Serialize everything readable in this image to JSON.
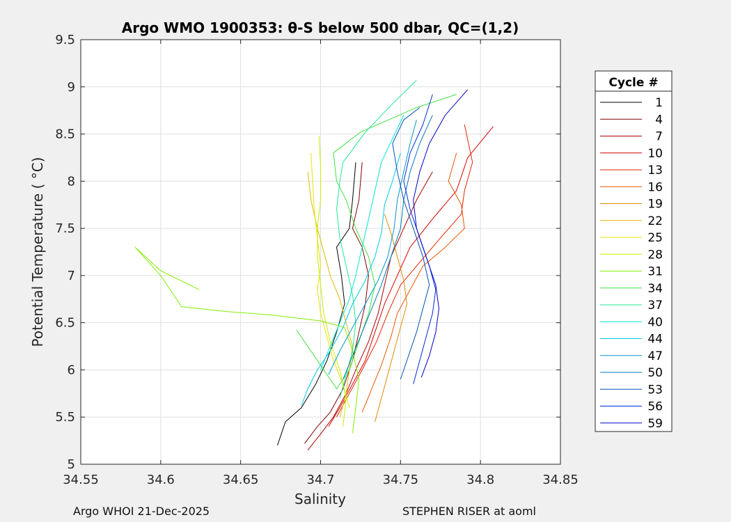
{
  "chart_data": {
    "type": "line",
    "title": "Argo WMO 1900353: θ-S below 500 dbar,  QC=(1,2)",
    "xlabel": "Salinity",
    "ylabel": "Potential Temperature ( °C)",
    "xlim": [
      34.55,
      34.85
    ],
    "ylim": [
      5,
      9.5
    ],
    "xticks": [
      "34.55",
      "34.6",
      "34.65",
      "34.7",
      "34.75",
      "34.8",
      "34.85"
    ],
    "yticks": [
      "5",
      "5.5",
      "6",
      "6.5",
      "7",
      "7.5",
      "8",
      "8.5",
      "9",
      "9.5"
    ],
    "grid": true,
    "legend": {
      "title": "Cycle #",
      "placement": "outside-right",
      "entries": [
        {
          "name": "1",
          "color": "#000000"
        },
        {
          "name": "4",
          "color": "#800000"
        },
        {
          "name": "7",
          "color": "#aa0000"
        },
        {
          "name": "10",
          "color": "#d40000"
        },
        {
          "name": "13",
          "color": "#e32400"
        },
        {
          "name": "16",
          "color": "#e85500"
        },
        {
          "name": "19",
          "color": "#e08a00"
        },
        {
          "name": "22",
          "color": "#e0b800"
        },
        {
          "name": "25",
          "color": "#e6e600"
        },
        {
          "name": "28",
          "color": "#c8f000"
        },
        {
          "name": "31",
          "color": "#80f000"
        },
        {
          "name": "34",
          "color": "#40e040"
        },
        {
          "name": "37",
          "color": "#20e890"
        },
        {
          "name": "40",
          "color": "#00e6d2"
        },
        {
          "name": "44",
          "color": "#00c8e6"
        },
        {
          "name": "47",
          "color": "#0096c8"
        },
        {
          "name": "50",
          "color": "#0078b4"
        },
        {
          "name": "53",
          "color": "#0050b4"
        },
        {
          "name": "56",
          "color": "#0028dc"
        },
        {
          "name": "59",
          "color": "#0000c8"
        }
      ]
    },
    "series": [
      {
        "name": "1",
        "color": "#000000",
        "points": [
          [
            34.673,
            5.2
          ],
          [
            34.678,
            5.45
          ],
          [
            34.688,
            5.6
          ],
          [
            34.697,
            5.85
          ],
          [
            34.704,
            6.1
          ],
          [
            34.71,
            6.4
          ],
          [
            34.715,
            6.7
          ],
          [
            34.713,
            7.0
          ],
          [
            34.71,
            7.3
          ],
          [
            34.718,
            7.5
          ],
          [
            34.72,
            7.8
          ],
          [
            34.722,
            8.2
          ]
        ]
      },
      {
        "name": "4",
        "color": "#800000",
        "points": [
          [
            34.69,
            5.22
          ],
          [
            34.698,
            5.4
          ],
          [
            34.706,
            5.55
          ],
          [
            34.714,
            5.8
          ],
          [
            34.72,
            6.1
          ],
          [
            34.724,
            6.4
          ],
          [
            34.728,
            6.7
          ],
          [
            34.73,
            7.0
          ],
          [
            34.726,
            7.3
          ],
          [
            34.72,
            7.5
          ],
          [
            34.724,
            7.8
          ],
          [
            34.726,
            8.2
          ]
        ]
      },
      {
        "name": "7",
        "color": "#aa0000",
        "points": [
          [
            34.692,
            5.15
          ],
          [
            34.7,
            5.32
          ],
          [
            34.708,
            5.5
          ],
          [
            34.716,
            5.75
          ],
          [
            34.722,
            6.0
          ],
          [
            34.73,
            6.3
          ],
          [
            34.736,
            6.6
          ],
          [
            34.74,
            6.9
          ],
          [
            34.744,
            7.2
          ],
          [
            34.752,
            7.5
          ],
          [
            34.76,
            7.8
          ],
          [
            34.77,
            8.1
          ]
        ]
      },
      {
        "name": "10",
        "color": "#d40000",
        "points": [
          [
            34.705,
            5.4
          ],
          [
            34.712,
            5.6
          ],
          [
            34.72,
            5.85
          ],
          [
            34.728,
            6.1
          ],
          [
            34.734,
            6.4
          ],
          [
            34.74,
            6.7
          ],
          [
            34.748,
            7.0
          ],
          [
            34.756,
            7.3
          ],
          [
            34.77,
            7.6
          ],
          [
            34.785,
            7.9
          ],
          [
            34.792,
            8.25
          ],
          [
            34.808,
            8.58
          ]
        ]
      },
      {
        "name": "13",
        "color": "#e32400",
        "points": [
          [
            34.71,
            5.5
          ],
          [
            34.718,
            5.75
          ],
          [
            34.726,
            6.0
          ],
          [
            34.735,
            6.3
          ],
          [
            34.742,
            6.6
          ],
          [
            34.75,
            6.9
          ],
          [
            34.76,
            7.1
          ],
          [
            34.775,
            7.4
          ],
          [
            34.788,
            7.65
          ],
          [
            34.79,
            7.9
          ],
          [
            34.795,
            8.2
          ],
          [
            34.79,
            8.6
          ]
        ]
      },
      {
        "name": "16",
        "color": "#e85500",
        "points": [
          [
            34.726,
            5.55
          ],
          [
            34.732,
            5.8
          ],
          [
            34.738,
            6.05
          ],
          [
            34.744,
            6.35
          ],
          [
            34.748,
            6.6
          ],
          [
            34.756,
            6.85
          ],
          [
            34.764,
            7.1
          ],
          [
            34.778,
            7.3
          ],
          [
            34.79,
            7.5
          ],
          [
            34.788,
            7.75
          ],
          [
            34.78,
            8.0
          ],
          [
            34.785,
            8.3
          ]
        ]
      },
      {
        "name": "19",
        "color": "#e08a00",
        "points": [
          [
            34.734,
            5.45
          ],
          [
            34.738,
            5.7
          ],
          [
            34.742,
            5.95
          ],
          [
            34.746,
            6.2
          ],
          [
            34.75,
            6.45
          ],
          [
            34.754,
            6.7
          ],
          [
            34.752,
            6.95
          ],
          [
            34.748,
            7.2
          ],
          [
            34.744,
            7.45
          ],
          [
            34.74,
            7.65
          ]
        ]
      },
      {
        "name": "22",
        "color": "#e0b800",
        "points": [
          [
            34.712,
            5.5
          ],
          [
            34.716,
            5.75
          ],
          [
            34.718,
            6.0
          ],
          [
            34.72,
            6.25
          ],
          [
            34.716,
            6.5
          ],
          [
            34.712,
            6.75
          ],
          [
            34.706,
            7.0
          ],
          [
            34.702,
            7.25
          ],
          [
            34.698,
            7.5
          ],
          [
            34.694,
            7.8
          ],
          [
            34.692,
            8.1
          ]
        ]
      },
      {
        "name": "25",
        "color": "#e6e600",
        "points": [
          [
            34.718,
            5.6
          ],
          [
            34.714,
            5.85
          ],
          [
            34.708,
            6.1
          ],
          [
            34.704,
            6.35
          ],
          [
            34.7,
            6.6
          ],
          [
            34.698,
            6.85
          ],
          [
            34.7,
            7.1
          ],
          [
            34.698,
            7.4
          ],
          [
            34.696,
            7.7
          ],
          [
            34.695,
            8.0
          ],
          [
            34.694,
            8.3
          ]
        ]
      },
      {
        "name": "28",
        "color": "#c8f000",
        "points": [
          [
            34.714,
            5.4
          ],
          [
            34.716,
            5.7
          ],
          [
            34.712,
            6.0
          ],
          [
            34.706,
            6.3
          ],
          [
            34.702,
            6.6
          ],
          [
            34.7,
            6.9
          ],
          [
            34.698,
            7.2
          ],
          [
            34.698,
            7.5
          ],
          [
            34.7,
            7.8
          ],
          [
            34.7,
            8.15
          ],
          [
            34.699,
            8.48
          ]
        ]
      },
      {
        "name": "31",
        "color": "#80f000",
        "points": [
          [
            34.624,
            6.85
          ],
          [
            34.6,
            7.05
          ],
          [
            34.584,
            7.3
          ],
          [
            34.6,
            7.0
          ],
          [
            34.613,
            6.67
          ],
          [
            34.64,
            6.62
          ],
          [
            34.67,
            6.58
          ],
          [
            34.7,
            6.52
          ],
          [
            34.715,
            6.45
          ],
          [
            34.72,
            6.2
          ],
          [
            34.724,
            5.9
          ],
          [
            34.722,
            5.6
          ],
          [
            34.72,
            5.33
          ]
        ]
      },
      {
        "name": "34",
        "color": "#40e040",
        "points": [
          [
            34.685,
            6.42
          ],
          [
            34.7,
            6.05
          ],
          [
            34.71,
            5.8
          ],
          [
            34.718,
            6.0
          ],
          [
            34.724,
            6.3
          ],
          [
            34.73,
            6.6
          ],
          [
            34.734,
            6.9
          ],
          [
            34.73,
            7.2
          ],
          [
            34.722,
            7.5
          ],
          [
            34.716,
            7.8
          ],
          [
            34.71,
            8.0
          ],
          [
            34.708,
            8.3
          ],
          [
            34.725,
            8.52
          ],
          [
            34.76,
            8.78
          ],
          [
            34.785,
            8.92
          ]
        ]
      },
      {
        "name": "37",
        "color": "#20e890",
        "points": [
          [
            34.712,
            5.7
          ],
          [
            34.716,
            5.95
          ],
          [
            34.72,
            6.2
          ],
          [
            34.722,
            6.5
          ],
          [
            34.72,
            6.8
          ],
          [
            34.716,
            7.1
          ],
          [
            34.712,
            7.4
          ],
          [
            34.71,
            7.7
          ],
          [
            34.712,
            8.0
          ],
          [
            34.714,
            8.2
          ],
          [
            34.728,
            8.52
          ],
          [
            34.745,
            8.82
          ],
          [
            34.76,
            9.07
          ]
        ]
      },
      {
        "name": "40",
        "color": "#00e6d2",
        "points": [
          [
            34.7,
            6.0
          ],
          [
            34.706,
            6.25
          ],
          [
            34.712,
            6.5
          ],
          [
            34.718,
            6.75
          ],
          [
            34.722,
            7.0
          ],
          [
            34.726,
            7.3
          ],
          [
            34.73,
            7.6
          ],
          [
            34.734,
            7.9
          ],
          [
            34.738,
            8.2
          ],
          [
            34.745,
            8.45
          ],
          [
            34.752,
            8.7
          ]
        ]
      },
      {
        "name": "44",
        "color": "#00c8e6",
        "points": [
          [
            34.688,
            5.62
          ],
          [
            34.692,
            5.8
          ],
          [
            34.698,
            6.0
          ],
          [
            34.706,
            6.2
          ],
          [
            34.714,
            6.45
          ],
          [
            34.72,
            6.7
          ],
          [
            34.728,
            6.95
          ],
          [
            34.734,
            7.2
          ],
          [
            34.738,
            7.45
          ],
          [
            34.74,
            7.75
          ],
          [
            34.745,
            8.0
          ],
          [
            34.75,
            8.3
          ]
        ]
      },
      {
        "name": "47",
        "color": "#0096c8",
        "points": [
          [
            34.705,
            5.95
          ],
          [
            34.712,
            6.2
          ],
          [
            34.72,
            6.45
          ],
          [
            34.728,
            6.7
          ],
          [
            34.736,
            6.95
          ],
          [
            34.742,
            7.2
          ],
          [
            34.746,
            7.5
          ],
          [
            34.748,
            7.8
          ],
          [
            34.752,
            8.1
          ],
          [
            34.756,
            8.4
          ],
          [
            34.76,
            8.65
          ]
        ]
      },
      {
        "name": "50",
        "color": "#0078b4",
        "points": [
          [
            34.714,
            5.9
          ],
          [
            34.72,
            6.15
          ],
          [
            34.726,
            6.4
          ],
          [
            34.732,
            6.65
          ],
          [
            34.738,
            6.9
          ],
          [
            34.744,
            7.2
          ],
          [
            34.75,
            7.5
          ],
          [
            34.752,
            7.8
          ],
          [
            34.756,
            8.1
          ],
          [
            34.762,
            8.4
          ],
          [
            34.77,
            8.7
          ]
        ]
      },
      {
        "name": "53",
        "color": "#0050b4",
        "points": [
          [
            34.75,
            5.9
          ],
          [
            34.755,
            6.15
          ],
          [
            34.76,
            6.4
          ],
          [
            34.764,
            6.65
          ],
          [
            34.768,
            6.9
          ],
          [
            34.764,
            7.2
          ],
          [
            34.758,
            7.5
          ],
          [
            34.752,
            7.8
          ],
          [
            34.748,
            8.1
          ],
          [
            34.745,
            8.4
          ],
          [
            34.752,
            8.65
          ],
          [
            34.762,
            8.78
          ]
        ]
      },
      {
        "name": "56",
        "color": "#0028dc",
        "points": [
          [
            34.758,
            5.85
          ],
          [
            34.762,
            6.1
          ],
          [
            34.766,
            6.35
          ],
          [
            34.77,
            6.6
          ],
          [
            34.772,
            6.85
          ],
          [
            34.768,
            7.1
          ],
          [
            34.762,
            7.4
          ],
          [
            34.756,
            7.7
          ],
          [
            34.752,
            8.0
          ],
          [
            34.756,
            8.3
          ],
          [
            34.764,
            8.6
          ],
          [
            34.77,
            8.92
          ]
        ]
      },
      {
        "name": "59",
        "color": "#0000c8",
        "points": [
          [
            34.763,
            5.92
          ],
          [
            34.768,
            6.15
          ],
          [
            34.772,
            6.4
          ],
          [
            34.774,
            6.65
          ],
          [
            34.772,
            6.9
          ],
          [
            34.766,
            7.2
          ],
          [
            34.76,
            7.5
          ],
          [
            34.758,
            7.8
          ],
          [
            34.762,
            8.1
          ],
          [
            34.768,
            8.4
          ],
          [
            34.778,
            8.7
          ],
          [
            34.792,
            8.97
          ]
        ]
      }
    ]
  },
  "footer": {
    "left": "Argo WHOI 21-Dec-2025",
    "right": "STEPHEN RISER at aoml"
  }
}
